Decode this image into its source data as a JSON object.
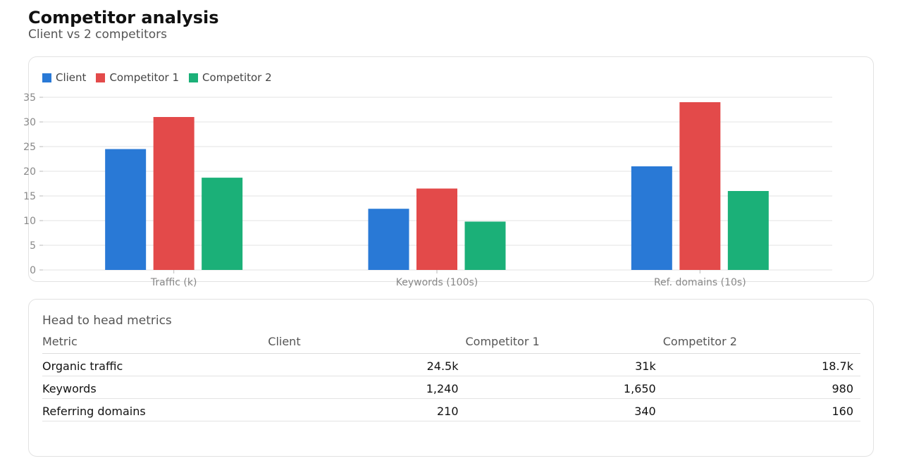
{
  "header": {
    "title": "Competitor analysis",
    "subtitle": "Client vs 2 competitors"
  },
  "colors": {
    "client": "#2979d6",
    "competitor1": "#e34a4a",
    "competitor2": "#1bb078",
    "grid": "#e3e3e3",
    "axis_text": "#888888"
  },
  "chart_data": {
    "type": "bar",
    "title": "",
    "xlabel": "",
    "ylabel": "",
    "categories": [
      "Traffic (k)",
      "Keywords (100s)",
      "Ref. domains (10s)"
    ],
    "series": [
      {
        "name": "Client",
        "values": [
          24.5,
          12.4,
          21.0
        ]
      },
      {
        "name": "Competitor 1",
        "values": [
          31.0,
          16.5,
          34.0
        ]
      },
      {
        "name": "Competitor 2",
        "values": [
          18.7,
          9.8,
          16.0
        ]
      }
    ],
    "ylim": [
      0,
      35
    ],
    "yticks": [
      0,
      5,
      10,
      15,
      20,
      25,
      30,
      35
    ],
    "grid": true,
    "legend": "top-left"
  },
  "table": {
    "title": "Head to head metrics",
    "columns": [
      "Metric",
      "Client",
      "Competitor 1",
      "Competitor 2"
    ],
    "rows": [
      {
        "metric": "Organic traffic",
        "client": "24.5k",
        "c1": "31k",
        "c2": "18.7k"
      },
      {
        "metric": "Keywords",
        "client": "1,240",
        "c1": "1,650",
        "c2": "980"
      },
      {
        "metric": "Referring domains",
        "client": "210",
        "c1": "340",
        "c2": "160"
      }
    ]
  }
}
